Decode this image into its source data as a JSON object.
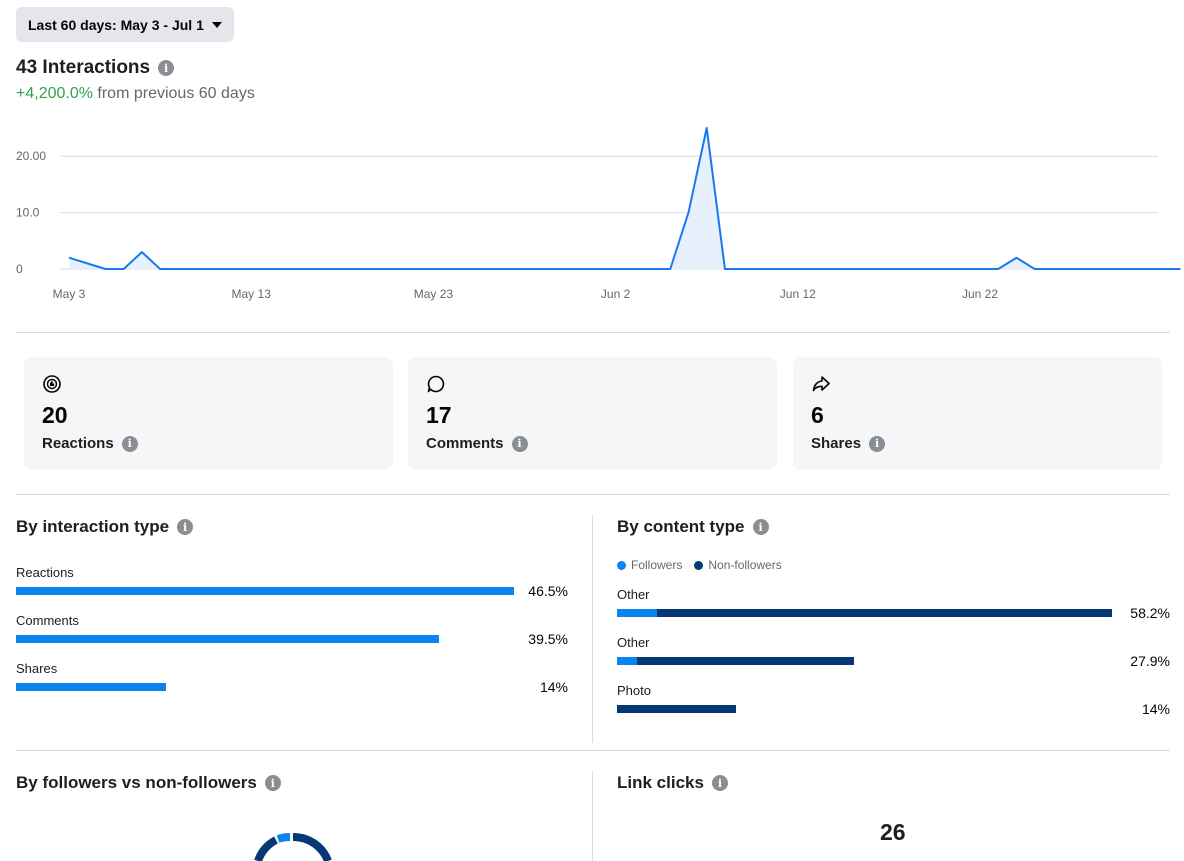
{
  "date_range": {
    "label": "Last 60 days: May 3 - Jul 1"
  },
  "summary": {
    "title": "43 Interactions",
    "delta": "+4,200.0%",
    "delta_suffix": "from previous 60 days"
  },
  "colors": {
    "accent": "#1877f2",
    "light": "#0a84ee",
    "dark": "#063973",
    "positive": "#31a24c"
  },
  "chart_data": {
    "type": "line",
    "yticks": [
      "20.00",
      "10.0",
      "0"
    ],
    "ylim": [
      0,
      25
    ],
    "xticks": [
      {
        "label": "May 3",
        "day": 0
      },
      {
        "label": "May 13",
        "day": 10
      },
      {
        "label": "May 23",
        "day": 20
      },
      {
        "label": "Jun 2",
        "day": 30
      },
      {
        "label": "Jun 12",
        "day": 40
      },
      {
        "label": "Jun 22",
        "day": 50
      }
    ],
    "series": [
      {
        "values": [
          2,
          1,
          0,
          0,
          3,
          0,
          0,
          0,
          0,
          0,
          0,
          0,
          0,
          0,
          0,
          0,
          0,
          0,
          0,
          0,
          0,
          0,
          0,
          0,
          0,
          0,
          0,
          0,
          0,
          0,
          0,
          0,
          0,
          0,
          10,
          25,
          0,
          0,
          0,
          0,
          0,
          0,
          0,
          0,
          0,
          0,
          0,
          0,
          0,
          0,
          0,
          0,
          2,
          0,
          0,
          0,
          0,
          0,
          0,
          0,
          0,
          0
        ]
      }
    ],
    "grid": true
  },
  "stats": [
    {
      "value": "20",
      "label": "Reactions",
      "icon": "reactions-icon"
    },
    {
      "value": "17",
      "label": "Comments",
      "icon": "comment-icon"
    },
    {
      "value": "6",
      "label": "Shares",
      "icon": "share-icon"
    }
  ],
  "by_interaction": {
    "title": "By interaction type",
    "rows": [
      {
        "label": "Reactions",
        "pct": "46.5%",
        "value": 46.5
      },
      {
        "label": "Comments",
        "pct": "39.5%",
        "value": 39.5
      },
      {
        "label": "Shares",
        "pct": "14%",
        "value": 14
      }
    ]
  },
  "by_content": {
    "title": "By content type",
    "legend": [
      "Followers",
      "Non-followers"
    ],
    "rows": [
      {
        "label": "Other",
        "pct": "58.2%",
        "followers": 4.7,
        "nonfollowers": 53.5
      },
      {
        "label": "Other",
        "pct": "27.9%",
        "followers": 2.3,
        "nonfollowers": 25.6
      },
      {
        "label": "Photo",
        "pct": "14%",
        "followers": 0,
        "nonfollowers": 14
      }
    ]
  },
  "followers_section": {
    "title": "By followers vs non-followers"
  },
  "link_clicks": {
    "title": "Link clicks",
    "value": "26"
  }
}
